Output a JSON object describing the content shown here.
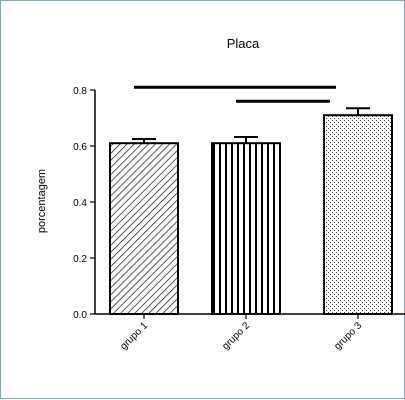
{
  "chart_data": {
    "type": "bar",
    "title": "Placa",
    "xlabel": "",
    "ylabel": "porcentagem",
    "categories": [
      "grupo 1",
      "grupo 2",
      "grupo 3"
    ],
    "values": [
      0.61,
      0.61,
      0.71
    ],
    "errors": [
      0.015,
      0.022,
      0.025
    ],
    "ylim": [
      0,
      0.8
    ],
    "yticks": [
      "0.0",
      "0.2",
      "0.4",
      "0.6",
      "0.8"
    ],
    "patterns": [
      "diagonal-hatch",
      "vertical-stripes",
      "dots"
    ],
    "significance": [
      {
        "from": "grupo 1",
        "to": "grupo 3",
        "level": 0.81
      },
      {
        "from": "grupo 2",
        "to": "grupo 3",
        "level": 0.76
      }
    ],
    "grid": false,
    "legend": "none"
  }
}
